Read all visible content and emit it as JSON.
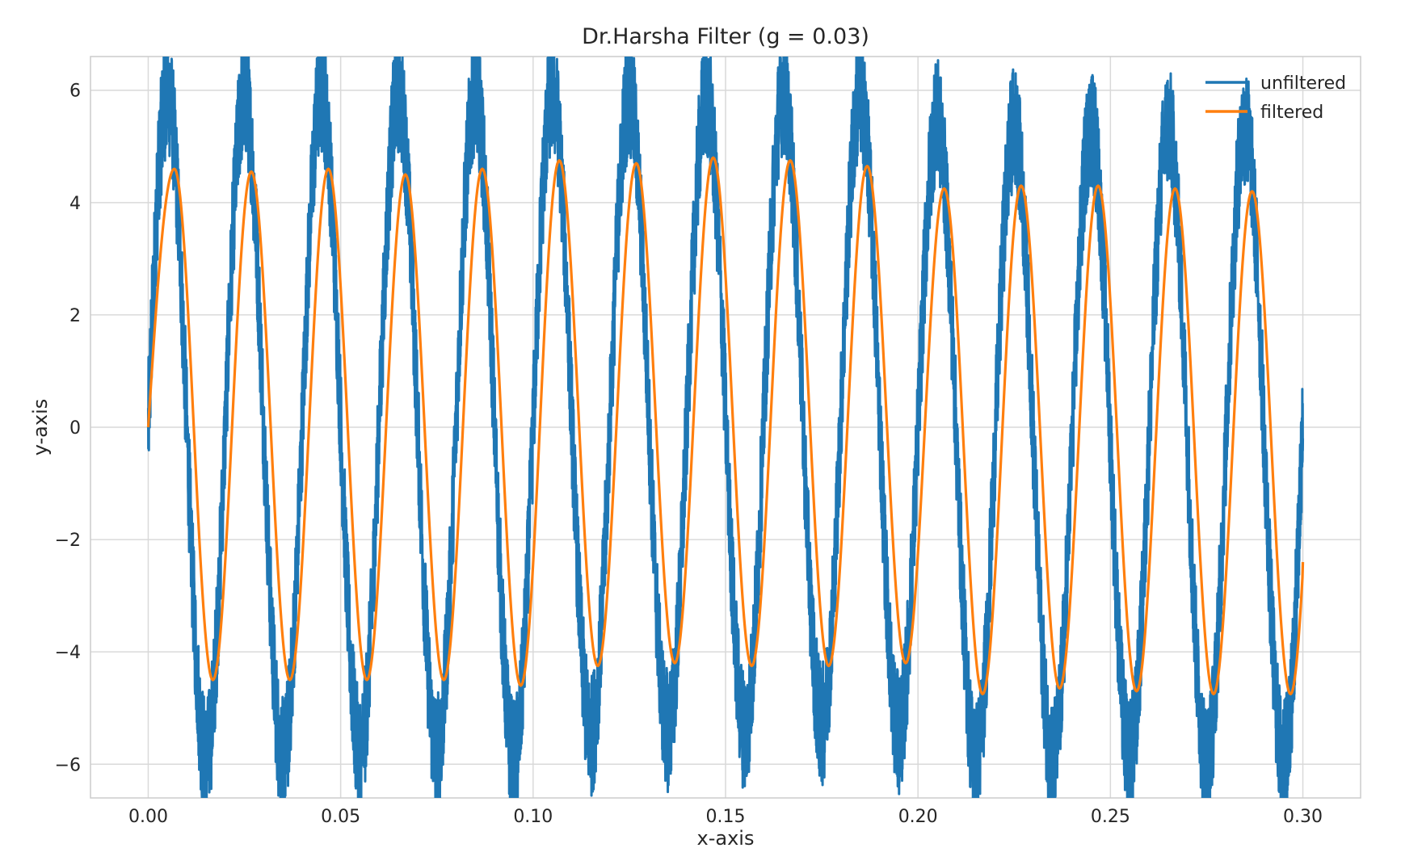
{
  "chart_data": {
    "type": "line",
    "title": "Dr.Harsha Filter (g = 0.03)",
    "xlabel": "x-axis",
    "ylabel": "y-axis",
    "xlim": [
      -0.015,
      0.315
    ],
    "ylim": [
      -6.6,
      6.6
    ],
    "x_ticks": [
      0.0,
      0.05,
      0.1,
      0.15,
      0.2,
      0.25,
      0.3
    ],
    "x_tick_labels": [
      "0.00",
      "0.05",
      "0.10",
      "0.15",
      "0.20",
      "0.25",
      "0.30"
    ],
    "y_ticks": [
      -6,
      -4,
      -2,
      0,
      2,
      4,
      6
    ],
    "y_tick_labels": [
      "−6",
      "−4",
      "−2",
      "0",
      "2",
      "4",
      "6"
    ],
    "grid": true,
    "legend_position": "top-right",
    "colors": {
      "unfiltered": "#1f77b4",
      "filtered": "#ff7f0e"
    },
    "series": [
      {
        "name": "unfiltered",
        "style": "noisy",
        "x_range": [
          0.0,
          0.3
        ],
        "peaks": [
          {
            "x": 0.005,
            "y": 5.95
          },
          {
            "x": 0.025,
            "y": 5.9
          },
          {
            "x": 0.045,
            "y": 5.95
          },
          {
            "x": 0.065,
            "y": 5.95
          },
          {
            "x": 0.085,
            "y": 5.95
          },
          {
            "x": 0.105,
            "y": 5.95
          },
          {
            "x": 0.125,
            "y": 5.9
          },
          {
            "x": 0.145,
            "y": 5.85
          },
          {
            "x": 0.165,
            "y": 5.95
          },
          {
            "x": 0.185,
            "y": 5.9
          },
          {
            "x": 0.205,
            "y": 5.45
          },
          {
            "x": 0.225,
            "y": 5.35
          },
          {
            "x": 0.245,
            "y": 5.35
          },
          {
            "x": 0.265,
            "y": 5.35
          },
          {
            "x": 0.285,
            "y": 5.35
          }
        ],
        "troughs": [
          {
            "x": 0.015,
            "y": -5.9
          },
          {
            "x": 0.035,
            "y": -5.9
          },
          {
            "x": 0.055,
            "y": -5.8
          },
          {
            "x": 0.075,
            "y": -5.8
          },
          {
            "x": 0.095,
            "y": -5.95
          },
          {
            "x": 0.115,
            "y": -5.5
          },
          {
            "x": 0.135,
            "y": -5.4
          },
          {
            "x": 0.155,
            "y": -5.4
          },
          {
            "x": 0.175,
            "y": -5.3
          },
          {
            "x": 0.195,
            "y": -5.45
          },
          {
            "x": 0.215,
            "y": -5.95
          },
          {
            "x": 0.235,
            "y": -5.95
          },
          {
            "x": 0.255,
            "y": -5.9
          },
          {
            "x": 0.275,
            "y": -5.95
          },
          {
            "x": 0.295,
            "y": -5.95
          }
        ],
        "end_point": {
          "x": 0.3,
          "y": -0.2
        }
      },
      {
        "name": "filtered",
        "style": "smooth",
        "x_range": [
          0.0,
          0.3
        ],
        "start_point": {
          "x": 0.0,
          "y": 0.0
        },
        "peaks": [
          {
            "x": 0.0068,
            "y": 4.6
          },
          {
            "x": 0.0268,
            "y": 4.55
          },
          {
            "x": 0.0468,
            "y": 4.6
          },
          {
            "x": 0.0668,
            "y": 4.5
          },
          {
            "x": 0.0868,
            "y": 4.6
          },
          {
            "x": 0.1068,
            "y": 4.75
          },
          {
            "x": 0.1268,
            "y": 4.7
          },
          {
            "x": 0.1468,
            "y": 4.8
          },
          {
            "x": 0.1668,
            "y": 4.75
          },
          {
            "x": 0.1868,
            "y": 4.65
          },
          {
            "x": 0.2068,
            "y": 4.25
          },
          {
            "x": 0.2268,
            "y": 4.3
          },
          {
            "x": 0.2468,
            "y": 4.3
          },
          {
            "x": 0.2668,
            "y": 4.25
          },
          {
            "x": 0.2868,
            "y": 4.2
          }
        ],
        "troughs": [
          {
            "x": 0.0168,
            "y": -4.5
          },
          {
            "x": 0.0368,
            "y": -4.5
          },
          {
            "x": 0.0568,
            "y": -4.5
          },
          {
            "x": 0.0768,
            "y": -4.5
          },
          {
            "x": 0.0968,
            "y": -4.6
          },
          {
            "x": 0.1168,
            "y": -4.25
          },
          {
            "x": 0.1368,
            "y": -4.2
          },
          {
            "x": 0.1568,
            "y": -4.25
          },
          {
            "x": 0.1768,
            "y": -4.25
          },
          {
            "x": 0.1968,
            "y": -4.2
          },
          {
            "x": 0.2168,
            "y": -4.75
          },
          {
            "x": 0.2368,
            "y": -4.65
          },
          {
            "x": 0.2568,
            "y": -4.7
          },
          {
            "x": 0.2768,
            "y": -4.75
          },
          {
            "x": 0.2968,
            "y": -4.75
          }
        ],
        "end_point": {
          "x": 0.3,
          "y": -2.4
        }
      }
    ]
  }
}
